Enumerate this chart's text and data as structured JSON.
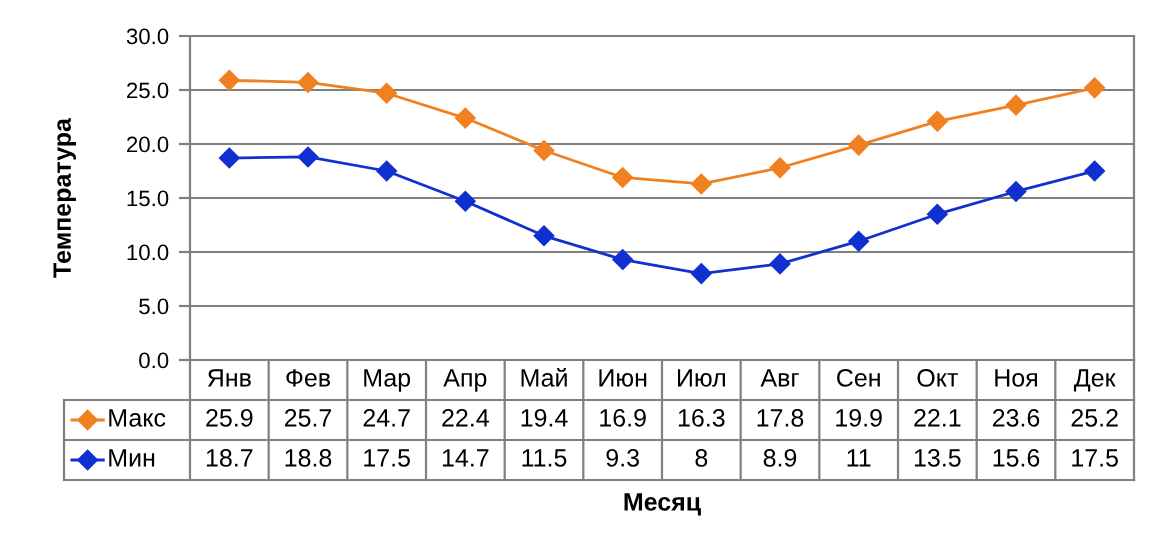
{
  "chart_data": {
    "type": "line",
    "xlabel": "Месяц",
    "ylabel": "Температура",
    "categories": [
      "Янв",
      "Фев",
      "Мар",
      "Апр",
      "Май",
      "Июн",
      "Июл",
      "Авг",
      "Сен",
      "Окт",
      "Ноя",
      "Дек"
    ],
    "series": [
      {
        "name": "Макс",
        "color": "#f08020",
        "values": [
          25.9,
          25.7,
          24.7,
          22.4,
          19.4,
          16.9,
          16.3,
          17.8,
          19.9,
          22.1,
          23.6,
          25.2
        ]
      },
      {
        "name": "Мин",
        "color": "#1030d0",
        "values": [
          18.7,
          18.8,
          17.5,
          14.7,
          11.5,
          9.3,
          8,
          8.9,
          11,
          13.5,
          15.6,
          17.5
        ]
      }
    ],
    "ylim": [
      0,
      30
    ],
    "yticks": [
      {
        "value": 0,
        "label": "0.0"
      },
      {
        "value": 5,
        "label": "5.0"
      },
      {
        "value": 10,
        "label": "10.0"
      },
      {
        "value": 15,
        "label": "15.0"
      },
      {
        "value": 20,
        "label": "20.0"
      },
      {
        "value": 25,
        "label": "25.0"
      },
      {
        "value": 30,
        "label": "30.0"
      }
    ],
    "grid": "y",
    "marker": "diamond",
    "line_style": "solid",
    "data_labels": true,
    "legend": "bottom left"
  }
}
